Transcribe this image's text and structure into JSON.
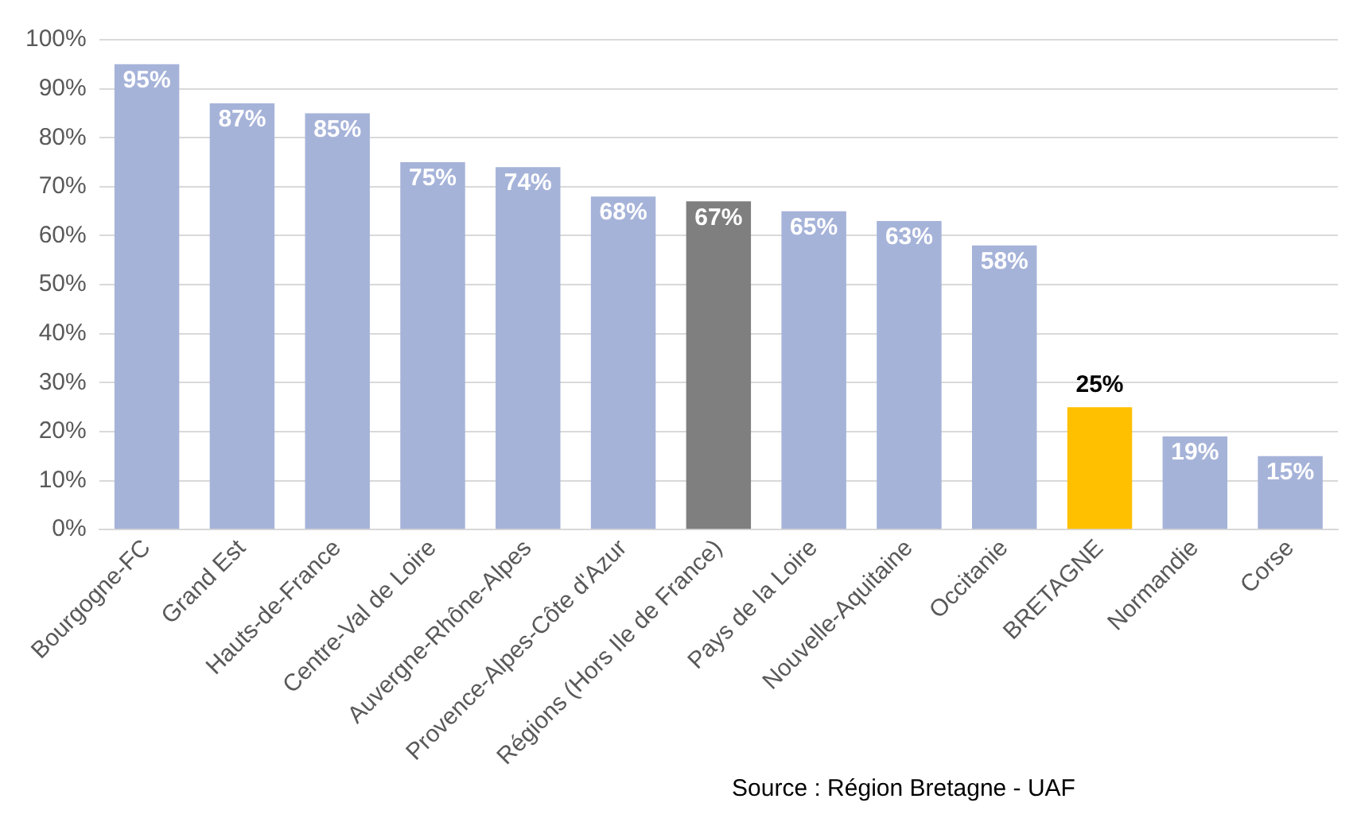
{
  "chart_data": {
    "type": "bar",
    "categories": [
      "Bourgogne-FC",
      "Grand Est",
      "Hauts-de-France",
      "Centre-Val de Loire",
      "Auvergne-Rhône-Alpes",
      "Provence-Alpes-Côte d'Azur",
      "Régions (Hors Ile de France)",
      "Pays de la Loire",
      "Nouvelle-Aquitaine",
      "Occitanie",
      "BRETAGNE",
      "Normandie",
      "Corse"
    ],
    "values": [
      95,
      87,
      85,
      75,
      74,
      68,
      67,
      65,
      63,
      58,
      25,
      19,
      15
    ],
    "colors": [
      "#a6b3d9",
      "#a6b3d9",
      "#a6b3d9",
      "#a6b3d9",
      "#a6b3d9",
      "#a6b3d9",
      "#7f7f7f",
      "#a6b3d9",
      "#a6b3d9",
      "#a6b3d9",
      "#ffc000",
      "#a6b3d9",
      "#a6b3d9"
    ],
    "value_labels": [
      "95%",
      "87%",
      "85%",
      "75%",
      "74%",
      "68%",
      "67%",
      "65%",
      "63%",
      "58%",
      "25%",
      "19%",
      "15%"
    ],
    "ylim": [
      0,
      100
    ],
    "yticks": [
      {
        "value": 0,
        "label": "0%"
      },
      {
        "value": 10,
        "label": "10%"
      },
      {
        "value": 20,
        "label": "20%"
      },
      {
        "value": 30,
        "label": "30%"
      },
      {
        "value": 40,
        "label": "40%"
      },
      {
        "value": 50,
        "label": "50%"
      },
      {
        "value": 60,
        "label": "60%"
      },
      {
        "value": 70,
        "label": "70%"
      },
      {
        "value": 80,
        "label": "80%"
      },
      {
        "value": 90,
        "label": "90%"
      },
      {
        "value": 100,
        "label": "100%"
      }
    ],
    "grid": "y",
    "legend": false,
    "annotations": [
      "Source : Région Bretagne - UAF"
    ]
  }
}
